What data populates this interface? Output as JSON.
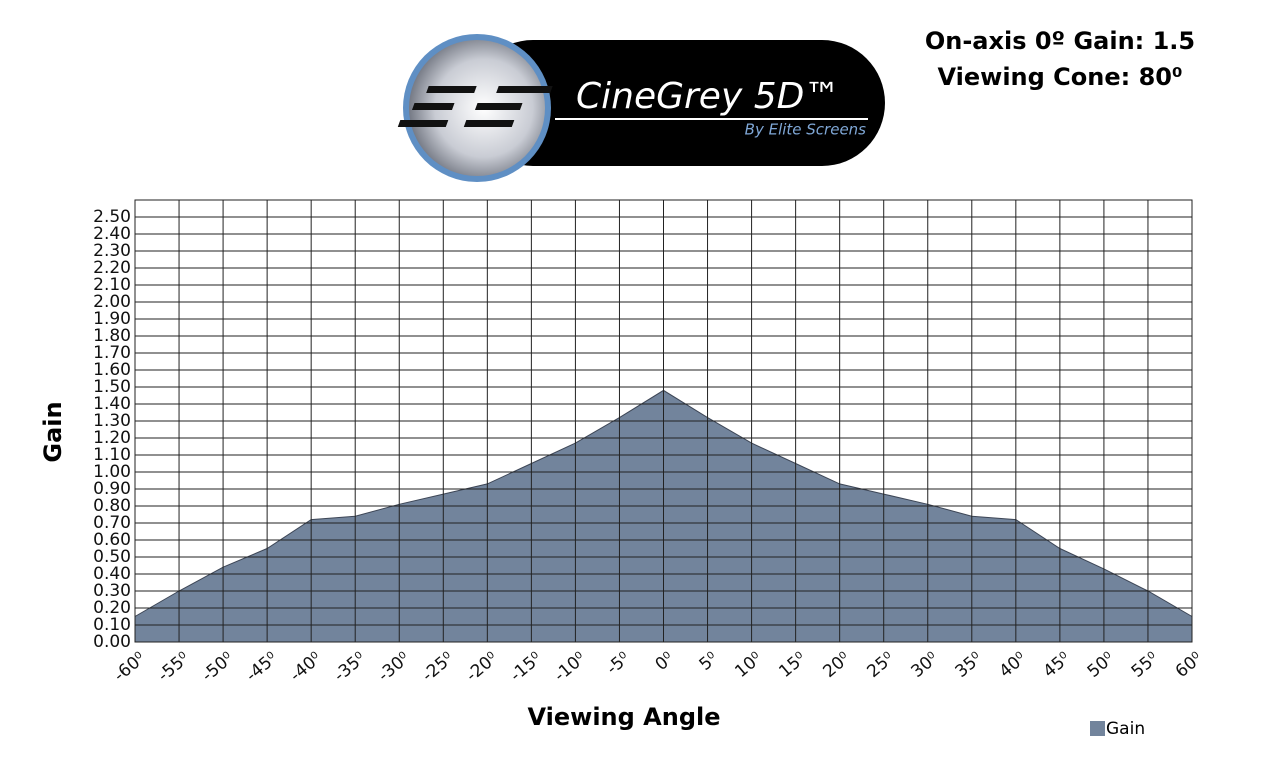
{
  "chart_data": {
    "type": "area",
    "annotations": [
      "On-axis 0º Gain: 1.5",
      "Viewing Cone: 80⁰"
    ],
    "logo_title": "CineGrey 5D™",
    "logo_subtitle": "By Elite Screens",
    "x_label": "Viewing Angle",
    "y_label": "Gain",
    "x": [
      -60,
      -55,
      -50,
      -45,
      -40,
      -35,
      -30,
      -25,
      -20,
      -15,
      -10,
      -5,
      0,
      5,
      10,
      15,
      20,
      25,
      30,
      35,
      40,
      45,
      50,
      55,
      60
    ],
    "series": [
      {
        "name": "Gain",
        "color": "#72849c",
        "values": [
          0.15,
          0.3,
          0.44,
          0.55,
          0.72,
          0.74,
          0.81,
          0.87,
          0.93,
          1.05,
          1.17,
          1.32,
          1.48,
          1.32,
          1.17,
          1.05,
          0.93,
          0.87,
          0.81,
          0.74,
          0.72,
          0.55,
          0.43,
          0.3,
          0.15
        ]
      }
    ],
    "xlim": [
      -60,
      60
    ],
    "ylim": [
      0,
      2.6
    ],
    "xticks": [
      {
        "value": -60,
        "label": "-60⁰"
      },
      {
        "value": -55,
        "label": "-55⁰"
      },
      {
        "value": -50,
        "label": "-50⁰"
      },
      {
        "value": -45,
        "label": "-45⁰"
      },
      {
        "value": -40,
        "label": "-40⁰"
      },
      {
        "value": -35,
        "label": "-35⁰"
      },
      {
        "value": -30,
        "label": "-30⁰"
      },
      {
        "value": -25,
        "label": "-25⁰"
      },
      {
        "value": -20,
        "label": "-20⁰"
      },
      {
        "value": -15,
        "label": "-15⁰"
      },
      {
        "value": -10,
        "label": "-10⁰"
      },
      {
        "value": -5,
        "label": "-5⁰"
      },
      {
        "value": 0,
        "label": "0⁰"
      },
      {
        "value": 5,
        "label": "5⁰"
      },
      {
        "value": 10,
        "label": "10⁰"
      },
      {
        "value": 15,
        "label": "15⁰"
      },
      {
        "value": 20,
        "label": "20⁰"
      },
      {
        "value": 25,
        "label": "25⁰"
      },
      {
        "value": 30,
        "label": "30⁰"
      },
      {
        "value": 35,
        "label": "35⁰"
      },
      {
        "value": 40,
        "label": "40⁰"
      },
      {
        "value": 45,
        "label": "45⁰"
      },
      {
        "value": 50,
        "label": "50⁰"
      },
      {
        "value": 55,
        "label": "55⁰"
      },
      {
        "value": 60,
        "label": "60⁰"
      }
    ],
    "yticks": [
      {
        "value": 0,
        "label": "0.00"
      },
      {
        "value": 0.1,
        "label": "0.10"
      },
      {
        "value": 0.2,
        "label": "0.20"
      },
      {
        "value": 0.3,
        "label": "0.30"
      },
      {
        "value": 0.4,
        "label": "0.40"
      },
      {
        "value": 0.5,
        "label": "0.50"
      },
      {
        "value": 0.6,
        "label": "0.60"
      },
      {
        "value": 0.7,
        "label": "0.70"
      },
      {
        "value": 0.8,
        "label": "0.80"
      },
      {
        "value": 0.9,
        "label": "0.90"
      },
      {
        "value": 1,
        "label": "1.00"
      },
      {
        "value": 1.1,
        "label": "1.10"
      },
      {
        "value": 1.2,
        "label": "1.20"
      },
      {
        "value": 1.3,
        "label": "1.30"
      },
      {
        "value": 1.4,
        "label": "1.40"
      },
      {
        "value": 1.5,
        "label": "1.50"
      },
      {
        "value": 1.6,
        "label": "1.60"
      },
      {
        "value": 1.7,
        "label": "1.70"
      },
      {
        "value": 1.8,
        "label": "1.80"
      },
      {
        "value": 1.9,
        "label": "1.90"
      },
      {
        "value": 2,
        "label": "2.00"
      },
      {
        "value": 2.1,
        "label": "2.10"
      },
      {
        "value": 2.2,
        "label": "2.20"
      },
      {
        "value": 2.3,
        "label": "2.30"
      },
      {
        "value": 2.4,
        "label": "2.40"
      },
      {
        "value": 2.5,
        "label": "2.50"
      }
    ],
    "grid": true,
    "legend": "bottom-right"
  }
}
